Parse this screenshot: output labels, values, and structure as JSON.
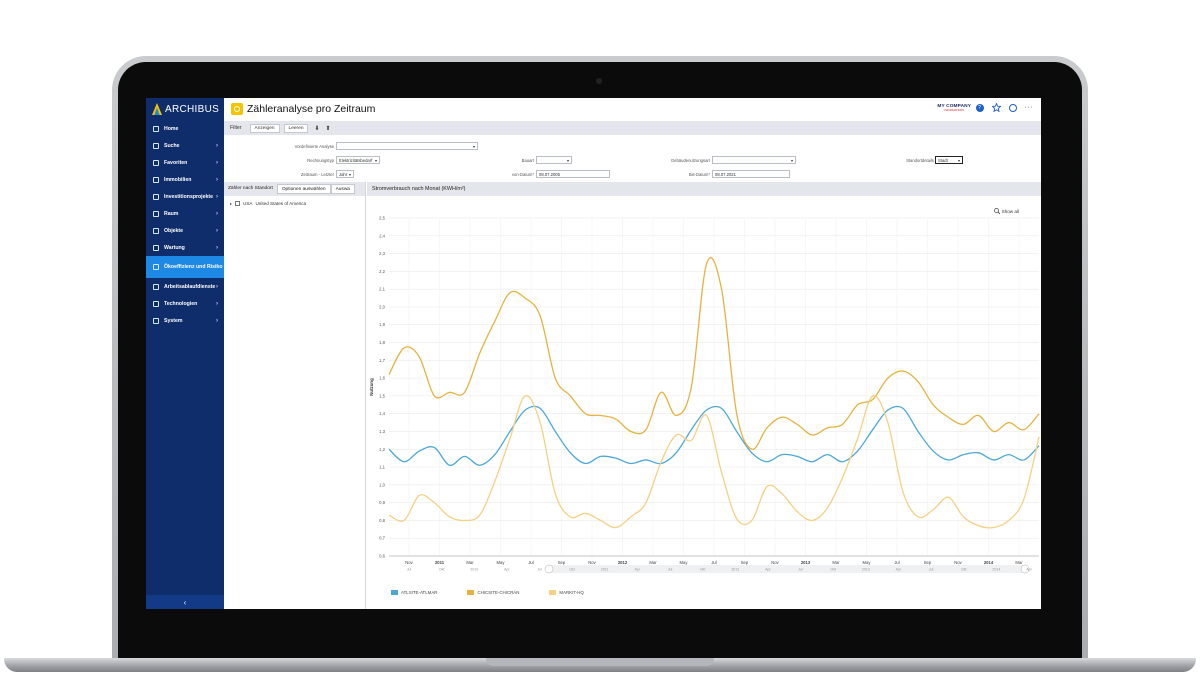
{
  "brand": {
    "name": "ARCHIBUS"
  },
  "sidebar": {
    "items": [
      {
        "label": "Home",
        "icon": "home-icon",
        "chevron": ""
      },
      {
        "label": "Suche",
        "icon": "search-icon",
        "chevron": "›"
      },
      {
        "label": "Favoriten",
        "icon": "star-icon",
        "chevron": "›"
      },
      {
        "label": "Immobilien",
        "icon": "building-icon",
        "chevron": "›"
      },
      {
        "label": "Investitionsprojekte",
        "icon": "project-icon",
        "chevron": "›"
      },
      {
        "label": "Raum",
        "icon": "room-icon",
        "chevron": "›"
      },
      {
        "label": "Objekte",
        "icon": "asset-icon",
        "chevron": "›"
      },
      {
        "label": "Wartung",
        "icon": "wrench-icon",
        "chevron": "›"
      },
      {
        "label": "Ökoeffizienz und Risiko",
        "icon": "leaf-icon",
        "chevron": "›",
        "active": true
      },
      {
        "label": "Arbeitsablaufdienste",
        "icon": "workflow-icon",
        "chevron": "›"
      },
      {
        "label": "Technologien",
        "icon": "bulb-icon",
        "chevron": "›"
      },
      {
        "label": "System",
        "icon": "gear-icon",
        "chevron": "›"
      }
    ],
    "collapse_label": "‹"
  },
  "header": {
    "title": "Zähleranalyse pro Zeitraum",
    "company_name": "MY COMPANY",
    "company_sub": "INFORMATIONS",
    "help_label": "?",
    "more_label": "···"
  },
  "filterbar": {
    "title": "Filter",
    "show_label": "Anzeigen",
    "clear_label": "Leeren",
    "down_arrow": "⬇",
    "up_arrow": "⬆"
  },
  "filters": {
    "predefined_label": "Vordefinierte Analyse",
    "predefined_value": "",
    "billtype_label": "Rechnungstyp",
    "billtype_value": "Elektrizitätsbedarf",
    "construction_label": "Bauart",
    "construction_value": "",
    "usage_label": "Gebäudenutzungsart",
    "usage_value": "",
    "location_label": "Standortdetails",
    "location_value": "Stadt",
    "period_label": "Zeitraum - Letzter",
    "period_value": "Jahr",
    "from_label": "von-Datum*",
    "from_value": "08.07.2005",
    "to_label": "Bis-Datum*",
    "to_value": "08.07.2021"
  },
  "left_panel": {
    "tabs": [
      "Zähler nach Standort",
      "Optionen auswählen",
      "Auswa"
    ],
    "tree": [
      {
        "code": "USA",
        "name": "United States of America"
      }
    ]
  },
  "chart_panel": {
    "title": "Stromverbrauch nach Monat (KWH/m²)",
    "show_all_label": "Show all"
  },
  "colors": {
    "sidebar_bg": "#0f2d6b",
    "accent": "#1e88e5",
    "series_atliste": "#4aa8d8",
    "series_chicsite": "#e6b23f",
    "series_markit": "#f6cf82"
  },
  "chart_data": {
    "type": "line",
    "title": "Stromverbrauch nach Monat (KWH/m²)",
    "ylabel": "Nutzung",
    "xlabel": "",
    "ylim": [
      0.6,
      2.5
    ],
    "yticks": [
      "0,6",
      "0,7",
      "0,8",
      "0,9",
      "1,0",
      "1,1",
      "1,2",
      "1,3",
      "1,4",
      "1,5",
      "1,6",
      "1,7",
      "1,8",
      "1,9",
      "2,0",
      "2,1",
      "2,2",
      "2,3",
      "2,4",
      "2,5"
    ],
    "x_tick_labels": [
      "Nov",
      "2011",
      "Mar",
      "May",
      "Jul",
      "Sep",
      "Nov",
      "2012",
      "Mar",
      "May",
      "Jul",
      "Sep",
      "Nov",
      "2013",
      "Mar",
      "May",
      "Jul",
      "Sep",
      "Nov",
      "2014",
      "Mar"
    ],
    "navigator_labels": [
      "Jul",
      "Okt",
      "2010",
      "Apr",
      "Jul",
      "Okt",
      "2011",
      "Apr",
      "Jul",
      "Okt",
      "2012",
      "Apr",
      "Jul",
      "Okt",
      "2013",
      "Apr",
      "Jul",
      "Okt",
      "2014",
      "Apr"
    ],
    "legend_position": "bottom-left",
    "grid": true,
    "series": [
      {
        "name": "ATLSITE-ATLMAR",
        "color": "#4aa8d8",
        "values": [
          1.2,
          1.13,
          1.19,
          1.21,
          1.11,
          1.16,
          1.11,
          1.17,
          1.3,
          1.42,
          1.43,
          1.3,
          1.18,
          1.12,
          1.16,
          1.15,
          1.12,
          1.14,
          1.12,
          1.18,
          1.31,
          1.42,
          1.43,
          1.3,
          1.18,
          1.13,
          1.17,
          1.16,
          1.13,
          1.17,
          1.13,
          1.19,
          1.31,
          1.42,
          1.43,
          1.3,
          1.19,
          1.14,
          1.17,
          1.18,
          1.14,
          1.17,
          1.14,
          1.22
        ]
      },
      {
        "name": "CHICSITE-CHICRAN",
        "color": "#e6b23f",
        "values": [
          1.62,
          1.77,
          1.72,
          1.5,
          1.52,
          1.52,
          1.74,
          1.92,
          2.08,
          2.05,
          1.95,
          1.6,
          1.5,
          1.4,
          1.39,
          1.37,
          1.3,
          1.31,
          1.52,
          1.39,
          1.55,
          2.24,
          2.1,
          1.4,
          1.2,
          1.32,
          1.38,
          1.34,
          1.28,
          1.32,
          1.34,
          1.45,
          1.48,
          1.6,
          1.64,
          1.58,
          1.45,
          1.38,
          1.34,
          1.39,
          1.3,
          1.35,
          1.31,
          1.4
        ]
      },
      {
        "name": "MARKIT-HQ",
        "color": "#f6cf82",
        "values": [
          0.83,
          0.8,
          0.94,
          0.9,
          0.82,
          0.8,
          0.83,
          1.02,
          1.26,
          1.5,
          1.35,
          0.95,
          0.82,
          0.84,
          0.8,
          0.76,
          0.82,
          0.9,
          1.13,
          1.28,
          1.25,
          1.39,
          1.07,
          0.81,
          0.8,
          0.99,
          0.95,
          0.85,
          0.8,
          0.87,
          1.04,
          1.26,
          1.5,
          1.35,
          0.96,
          0.82,
          0.86,
          0.93,
          0.82,
          0.77,
          0.76,
          0.8,
          0.92,
          1.27
        ]
      }
    ]
  }
}
